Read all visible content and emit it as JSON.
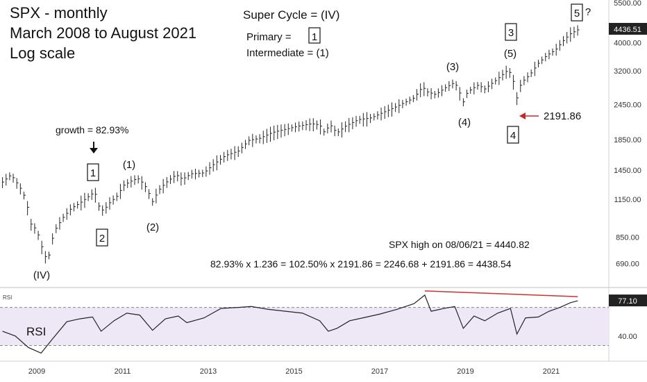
{
  "title": {
    "line1": "SPX - monthly",
    "line2": "March 2008 to August 2021",
    "line3": "Log scale"
  },
  "legend": {
    "super_cycle": "Super Cycle = (IV)",
    "primary_label": "Primary  =",
    "primary_box": "1",
    "intermediate": "Intermediate = (1)"
  },
  "annotations": {
    "growth": "growth = 82.93%",
    "high_note": "SPX high on 08/06/21 = 4440.82",
    "formula": "82.93% x 1.236 = 102.50% x 2191.86 = 2246.68   + 2191.86 = 4438.54",
    "low_value": "2191.86",
    "question": "?"
  },
  "waves": {
    "IV": "(IV)",
    "boxed_1": "1",
    "boxed_2": "2",
    "paren_1": "(1)",
    "paren_2": "(2)",
    "paren_3": "(3)",
    "paren_4": "(4)",
    "paren_5": "(5)",
    "boxed_3": "3",
    "boxed_4": "4",
    "boxed_5": "5"
  },
  "rsi_pane": {
    "tag": "RSI",
    "big_label": "RSI",
    "current": "77.10",
    "tick": "40.00"
  },
  "price_badge": "4436.51",
  "colors": {
    "price": "#222222",
    "rsi_line": "#222222",
    "rsi_band": "#ede7f6",
    "divergence": "#d32f2f",
    "arrow": "#c62828",
    "badge_bg": "#222222"
  },
  "chart_data": {
    "type": "line",
    "scale": "log",
    "x_ticks": [
      "2009",
      "2011",
      "2013",
      "2015",
      "2017",
      "2019",
      "2021"
    ],
    "y_ticks": [
      5500,
      4000,
      3200,
      2450,
      1850,
      1450,
      1150,
      850,
      690
    ],
    "y_tick_labels": [
      "5500.00",
      "4000.00",
      "3200.00",
      "2450.00",
      "1850.00",
      "1450.00",
      "1150.00",
      "850.00",
      "690.00"
    ],
    "ylim": [
      570,
      5500
    ],
    "series": [
      {
        "values": [
          [
            2008.2,
            1320
          ],
          [
            2008.4,
            1400
          ],
          [
            2008.6,
            1270
          ],
          [
            2008.75,
            1150
          ],
          [
            2008.85,
            950
          ],
          [
            2009.0,
            900
          ],
          [
            2009.15,
            760
          ],
          [
            2009.25,
            700
          ],
          [
            2009.4,
            890
          ],
          [
            2009.6,
            990
          ],
          [
            2009.8,
            1070
          ],
          [
            2010.0,
            1115
          ],
          [
            2010.25,
            1190
          ],
          [
            2010.35,
            1220
          ],
          [
            2010.45,
            1090
          ],
          [
            2010.55,
            1050
          ],
          [
            2010.7,
            1120
          ],
          [
            2010.9,
            1190
          ],
          [
            2011.0,
            1280
          ],
          [
            2011.2,
            1330
          ],
          [
            2011.35,
            1360
          ],
          [
            2011.5,
            1300
          ],
          [
            2011.6,
            1220
          ],
          [
            2011.7,
            1130
          ],
          [
            2011.85,
            1240
          ],
          [
            2012.0,
            1310
          ],
          [
            2012.25,
            1400
          ],
          [
            2012.4,
            1350
          ],
          [
            2012.6,
            1410
          ],
          [
            2012.9,
            1420
          ],
          [
            2013.1,
            1510
          ],
          [
            2013.4,
            1630
          ],
          [
            2013.7,
            1690
          ],
          [
            2013.95,
            1840
          ],
          [
            2014.2,
            1870
          ],
          [
            2014.5,
            1960
          ],
          [
            2014.8,
            2010
          ],
          [
            2015.1,
            2060
          ],
          [
            2015.4,
            2100
          ],
          [
            2015.6,
            2080
          ],
          [
            2015.7,
            1970
          ],
          [
            2015.85,
            2080
          ],
          [
            2016.0,
            1950
          ],
          [
            2016.2,
            2060
          ],
          [
            2016.5,
            2170
          ],
          [
            2016.8,
            2200
          ],
          [
            2017.0,
            2270
          ],
          [
            2017.4,
            2410
          ],
          [
            2017.8,
            2580
          ],
          [
            2018.0,
            2820
          ],
          [
            2018.1,
            2710
          ],
          [
            2018.3,
            2650
          ],
          [
            2018.55,
            2810
          ],
          [
            2018.75,
            2920
          ],
          [
            2018.85,
            2720
          ],
          [
            2018.95,
            2500
          ],
          [
            2019.05,
            2710
          ],
          [
            2019.3,
            2860
          ],
          [
            2019.45,
            2770
          ],
          [
            2019.7,
            2960
          ],
          [
            2020.0,
            3230
          ],
          [
            2020.1,
            3020
          ],
          [
            2020.2,
            2580
          ],
          [
            2020.3,
            2910
          ],
          [
            2020.5,
            3100
          ],
          [
            2020.7,
            3400
          ],
          [
            2020.9,
            3620
          ],
          [
            2021.1,
            3780
          ],
          [
            2021.3,
            4100
          ],
          [
            2021.45,
            4300
          ],
          [
            2021.62,
            4436
          ]
        ]
      }
    ],
    "rsi": {
      "levels": [
        30,
        70
      ],
      "values": [
        [
          2008.2,
          45
        ],
        [
          2008.5,
          40
        ],
        [
          2008.8,
          28
        ],
        [
          2009.1,
          22
        ],
        [
          2009.35,
          36
        ],
        [
          2009.7,
          55
        ],
        [
          2010.0,
          58
        ],
        [
          2010.3,
          60
        ],
        [
          2010.5,
          45
        ],
        [
          2010.8,
          56
        ],
        [
          2011.1,
          64
        ],
        [
          2011.4,
          62
        ],
        [
          2011.7,
          46
        ],
        [
          2012.0,
          58
        ],
        [
          2012.3,
          61
        ],
        [
          2012.5,
          54
        ],
        [
          2012.9,
          59
        ],
        [
          2013.3,
          69
        ],
        [
          2013.7,
          70
        ],
        [
          2014.0,
          71
        ],
        [
          2014.4,
          68
        ],
        [
          2014.8,
          66
        ],
        [
          2015.2,
          64
        ],
        [
          2015.6,
          56
        ],
        [
          2015.8,
          45
        ],
        [
          2016.0,
          48
        ],
        [
          2016.3,
          56
        ],
        [
          2016.7,
          60
        ],
        [
          2017.0,
          63
        ],
        [
          2017.4,
          68
        ],
        [
          2017.8,
          74
        ],
        [
          2018.05,
          83
        ],
        [
          2018.2,
          66
        ],
        [
          2018.5,
          69
        ],
        [
          2018.75,
          71
        ],
        [
          2018.95,
          48
        ],
        [
          2019.2,
          61
        ],
        [
          2019.45,
          56
        ],
        [
          2019.75,
          64
        ],
        [
          2020.05,
          69
        ],
        [
          2020.2,
          42
        ],
        [
          2020.4,
          59
        ],
        [
          2020.7,
          60
        ],
        [
          2020.95,
          66
        ],
        [
          2021.2,
          70
        ],
        [
          2021.45,
          75
        ],
        [
          2021.62,
          77
        ]
      ],
      "divergence": [
        [
          2018.05,
          83
        ],
        [
          2021.62,
          77
        ]
      ]
    }
  }
}
